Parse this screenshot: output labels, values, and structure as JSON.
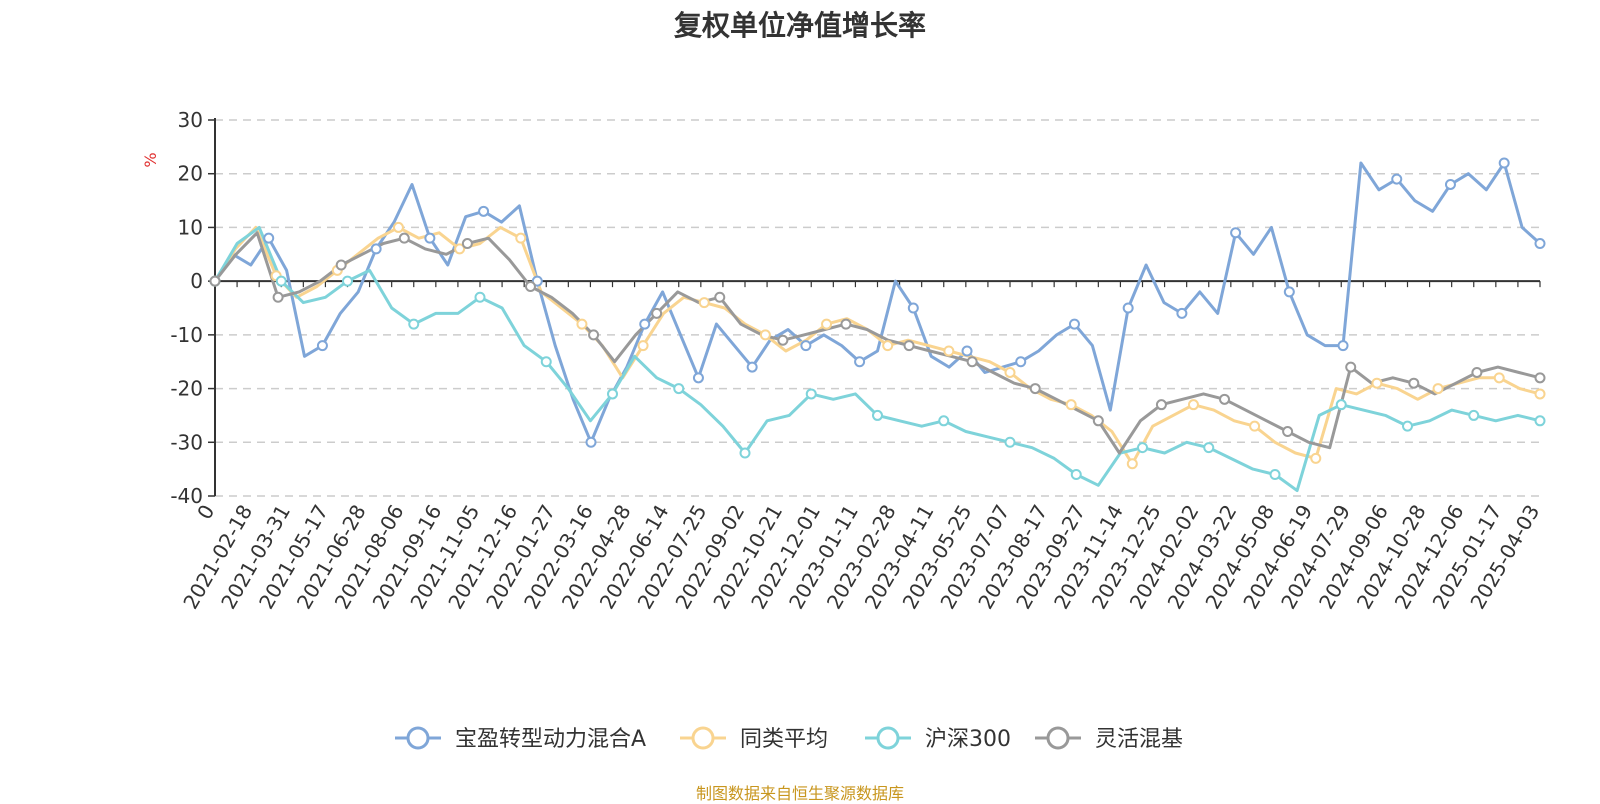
{
  "chart_data": {
    "type": "line",
    "title": "复权单位净值增长率",
    "ylabel": "%",
    "ylim": [
      -40,
      30
    ],
    "yticks": [
      -40,
      -30,
      -20,
      -10,
      0,
      10,
      20,
      30
    ],
    "xlabel": "",
    "x_tick_labels": [
      "0",
      "2021-02-18",
      "2021-03-31",
      "2021-05-17",
      "2021-06-28",
      "2021-08-06",
      "2021-09-16",
      "2021-11-05",
      "2021-12-16",
      "2022-01-27",
      "2022-03-16",
      "2022-04-28",
      "2022-06-14",
      "2022-07-25",
      "2022-09-02",
      "2022-10-21",
      "2022-12-01",
      "2023-01-11",
      "2023-02-28",
      "2023-04-11",
      "2023-05-25",
      "2023-07-07",
      "2023-08-17",
      "2023-09-27",
      "2023-11-14",
      "2023-12-25",
      "2024-02-02",
      "2024-03-22",
      "2024-05-08",
      "2024-06-19",
      "2024-07-29",
      "2024-09-06",
      "2024-10-28",
      "2024-12-06",
      "2025-01-17",
      "2025-04-03"
    ],
    "grid": true,
    "legend_position": "bottom",
    "series": [
      {
        "name": "宝盈转型动力混合A",
        "color": "#7fa6d8",
        "values": [
          0,
          5,
          3,
          8,
          2,
          -14,
          -12,
          -6,
          -2,
          6,
          11,
          18,
          8,
          3,
          12,
          13,
          11,
          14,
          0,
          -12,
          -22,
          -30,
          -22,
          -16,
          -8,
          -2,
          -10,
          -18,
          -8,
          -12,
          -16,
          -11,
          -9,
          -12,
          -10,
          -12,
          -15,
          -13,
          0,
          -5,
          -14,
          -16,
          -13,
          -17,
          -16,
          -15,
          -13,
          -10,
          -8,
          -12,
          -24,
          -5,
          3,
          -4,
          -6,
          -2,
          -6,
          9,
          5,
          10,
          -2,
          -10,
          -12,
          -12,
          22,
          17,
          19,
          15,
          13,
          18,
          20,
          17,
          22,
          10,
          7
        ]
      },
      {
        "name": "同类平均",
        "color": "#f9d490",
        "values": [
          0,
          6,
          10,
          1,
          -3,
          -1,
          2,
          5,
          8,
          10,
          8,
          9,
          6,
          7,
          10,
          8,
          -2,
          -5,
          -8,
          -12,
          -18,
          -12,
          -6,
          -3,
          -4,
          -5,
          -8,
          -10,
          -13,
          -11,
          -8,
          -7,
          -9,
          -12,
          -11,
          -12,
          -13,
          -14,
          -15,
          -17,
          -20,
          -22,
          -23,
          -25,
          -28,
          -34,
          -27,
          -25,
          -23,
          -24,
          -26,
          -27,
          -30,
          -32,
          -33,
          -20,
          -21,
          -19,
          -20,
          -22,
          -20,
          -19,
          -18,
          -18,
          -20,
          -21
        ]
      },
      {
        "name": "沪深300",
        "color": "#7ed3da",
        "values": [
          0,
          7,
          10,
          0,
          -4,
          -3,
          0,
          2,
          -5,
          -8,
          -6,
          -6,
          -3,
          -5,
          -12,
          -15,
          -20,
          -26,
          -21,
          -14,
          -18,
          -20,
          -23,
          -27,
          -32,
          -26,
          -25,
          -21,
          -22,
          -21,
          -25,
          -26,
          -27,
          -26,
          -28,
          -29,
          -30,
          -31,
          -33,
          -36,
          -38,
          -32,
          -31,
          -32,
          -30,
          -31,
          -33,
          -35,
          -36,
          -39,
          -25,
          -23,
          -24,
          -25,
          -27,
          -26,
          -24,
          -25,
          -26,
          -25,
          -26
        ]
      },
      {
        "name": "灵活混基",
        "color": "#999999",
        "values": [
          0,
          5,
          9,
          -3,
          -2,
          0,
          3,
          5,
          7,
          8,
          6,
          5,
          7,
          8,
          4,
          -1,
          -3,
          -6,
          -10,
          -15,
          -10,
          -6,
          -2,
          -4,
          -3,
          -8,
          -10,
          -11,
          -10,
          -9,
          -8,
          -9,
          -11,
          -12,
          -13,
          -14,
          -15,
          -17,
          -19,
          -20,
          -22,
          -24,
          -26,
          -32,
          -26,
          -23,
          -22,
          -21,
          -22,
          -24,
          -26,
          -28,
          -30,
          -31,
          -16,
          -19,
          -18,
          -19,
          -21,
          -19,
          -17,
          -16,
          -17,
          -18
        ]
      }
    ]
  },
  "source_note": "制图数据来自恒生聚源数据库"
}
